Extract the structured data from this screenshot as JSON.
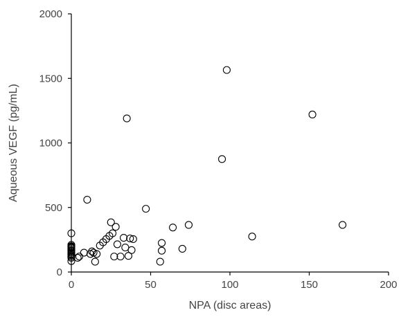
{
  "chart_data": {
    "type": "scatter",
    "title": "",
    "xlabel": "NPA (disc areas)",
    "ylabel": "Aqueous VEGF (pg/mL)",
    "xlim": [
      0,
      200
    ],
    "ylim": [
      0,
      2000
    ],
    "xticks": [
      0,
      50,
      100,
      150,
      200
    ],
    "yticks": [
      0,
      500,
      1000,
      1500,
      2000
    ],
    "grid": false,
    "marker": "open-circle",
    "marker_color": "#000000",
    "x": [
      0,
      0,
      0,
      0,
      0,
      0,
      0,
      0,
      0,
      0,
      0,
      0,
      0,
      0,
      0,
      4,
      5,
      8,
      10,
      12,
      13,
      14,
      15,
      16,
      18,
      20,
      22,
      24,
      25,
      26,
      27,
      28,
      29,
      31,
      33,
      34,
      35,
      36,
      37,
      38,
      39,
      47,
      56,
      57,
      57,
      64,
      70,
      74,
      95,
      98,
      114,
      152,
      171
    ],
    "y": [
      85,
      110,
      120,
      130,
      140,
      150,
      160,
      165,
      175,
      185,
      190,
      195,
      200,
      210,
      300,
      110,
      120,
      150,
      560,
      140,
      160,
      150,
      80,
      140,
      205,
      230,
      255,
      280,
      385,
      300,
      120,
      350,
      215,
      120,
      265,
      190,
      1190,
      125,
      260,
      170,
      255,
      490,
      80,
      225,
      165,
      345,
      180,
      365,
      875,
      1565,
      275,
      1220,
      365
    ]
  }
}
